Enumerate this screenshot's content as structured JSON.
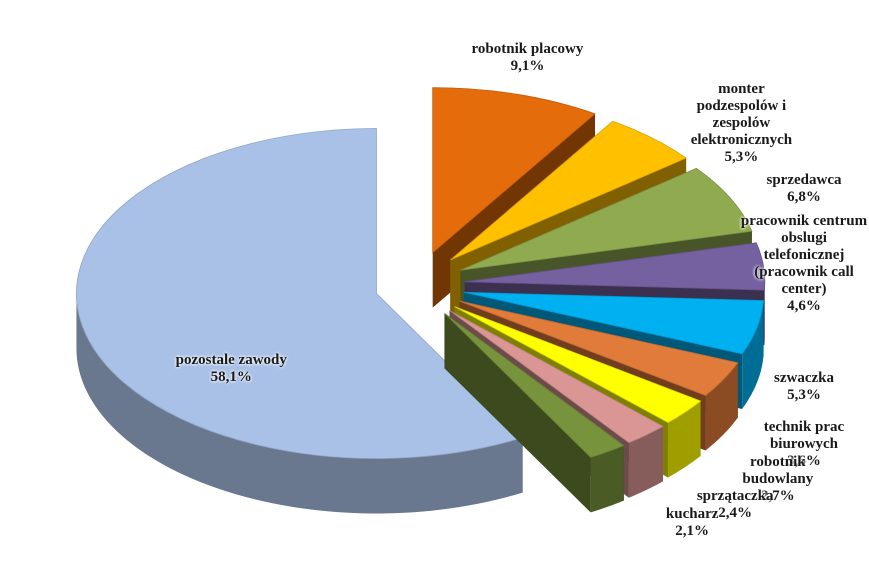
{
  "chart_data": {
    "type": "pie",
    "categories": [
      "robotnik placowy",
      "monter podzespolów i zespolów elektronicznych",
      "sprzedawca",
      "pracownik centrum obslugi telefonicznej (pracownik call center)",
      "szwaczka",
      "technik prac biurowych",
      "robotnik budowlany",
      "sprzątaczka",
      "kucharz",
      "pozostale zawody"
    ],
    "values": [
      9.1,
      5.3,
      6.8,
      4.6,
      5.3,
      3.6,
      2.7,
      2.4,
      2.1,
      58.1
    ],
    "value_labels": [
      "9,1%",
      "5,3%",
      "6,8%",
      "4,6%",
      "5,3%",
      "3,6%",
      "2,7%",
      "2,4%",
      "2,1%",
      "58,1%"
    ],
    "colors": [
      "#e46c0a",
      "#ffc000",
      "#8faa4f",
      "#7560a0",
      "#00b0f0",
      "#e07b39",
      "#ffff00",
      "#d99694",
      "#77933c",
      "#a9c1e6"
    ]
  }
}
